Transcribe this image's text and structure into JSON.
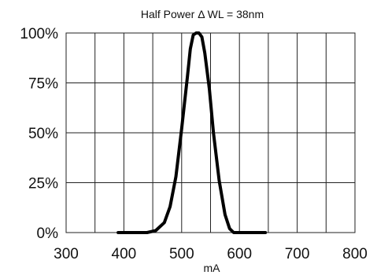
{
  "chart_data": {
    "type": "line",
    "title": "Half Power Δ WL = 38nm",
    "xlabel": "mA",
    "ylabel": "",
    "xlim": [
      300,
      800
    ],
    "ylim": [
      0,
      100
    ],
    "x_ticks": [
      "300",
      "400",
      "500",
      "600",
      "700",
      "800"
    ],
    "y_ticks": [
      "0%",
      "25%",
      "50%",
      "75%",
      "100%"
    ],
    "grid": true,
    "series": [
      {
        "x": [
          390,
          420,
          440,
          455,
          470,
          480,
          490,
          500,
          510,
          515,
          520,
          525,
          530,
          535,
          540,
          548,
          555,
          565,
          575,
          583,
          590,
          600,
          620,
          645
        ],
        "y": [
          0,
          0,
          0,
          1,
          5,
          13,
          28,
          52,
          78,
          92,
          99,
          100,
          100,
          98,
          90,
          72,
          50,
          26,
          9,
          2,
          0,
          0,
          0,
          0
        ]
      }
    ]
  }
}
